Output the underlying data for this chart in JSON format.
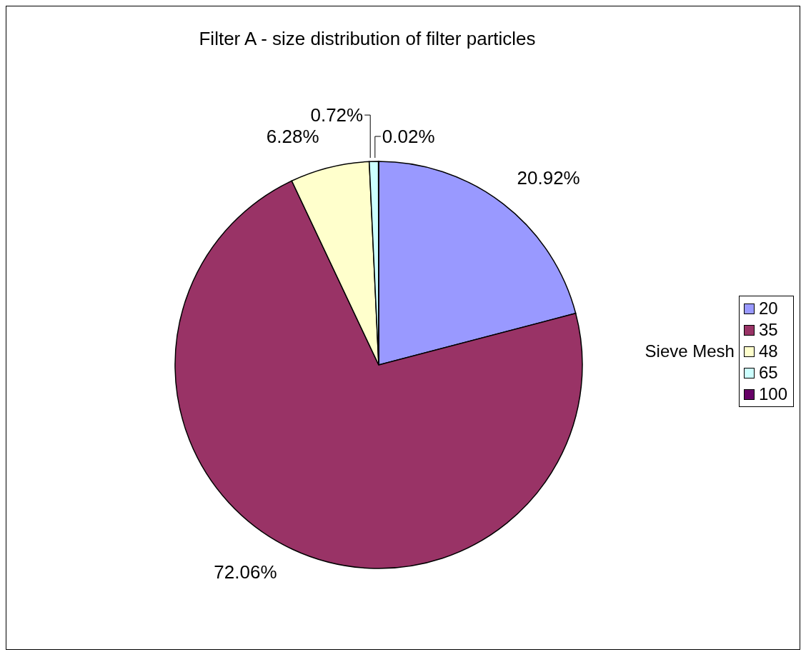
{
  "chart_data": {
    "type": "pie",
    "title": "Filter A - size distribution of filter particles",
    "legend_title": "Sieve Mesh",
    "legend": "right",
    "categories": [
      "20",
      "35",
      "48",
      "65",
      "100"
    ],
    "values": [
      20.92,
      72.06,
      6.28,
      0.72,
      0.02
    ],
    "colors": [
      "#9999ff",
      "#993366",
      "#ffffcc",
      "#ccffff",
      "#660066"
    ],
    "value_labels": [
      "20.92%",
      "72.06%",
      "6.28%",
      "0.72%",
      "0.02%"
    ]
  }
}
